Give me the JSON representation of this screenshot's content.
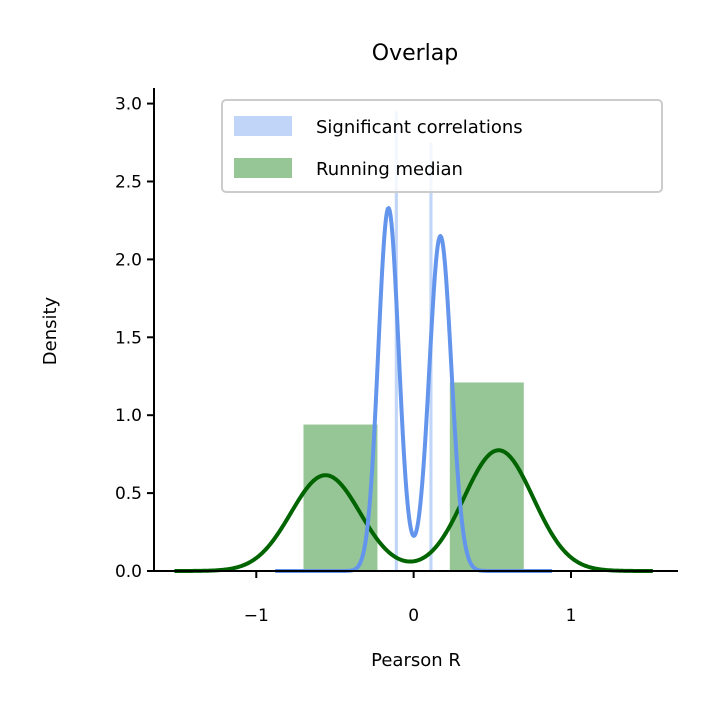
{
  "chart_data": {
    "type": "bar",
    "title": "Overlap",
    "xlabel": "Pearson R",
    "ylabel": "Density",
    "xlim": [
      -1.65,
      1.68
    ],
    "ylim": [
      0,
      3.1
    ],
    "x_ticks": [
      -1,
      0,
      1
    ],
    "x_tick_labels": [
      "−1",
      "0",
      "1"
    ],
    "y_ticks": [
      0.0,
      0.5,
      1.0,
      1.5,
      2.0,
      2.5,
      3.0
    ],
    "y_tick_labels": [
      "0.0",
      "0.5",
      "1.0",
      "1.5",
      "2.0",
      "2.5",
      "3.0"
    ],
    "grid": false,
    "legend_position": "top-right",
    "series": [
      {
        "name": "Significant correlations",
        "kind": "histogram",
        "color": "#6495ed",
        "opacity": 0.4,
        "bins": [
          {
            "x0": -0.23,
            "x1": -0.12,
            "density": 0.0
          },
          {
            "x0": -0.12,
            "x1": -0.1,
            "density": 2.95
          },
          {
            "x0": -0.1,
            "x1": 0.1,
            "density": 0.0
          },
          {
            "x0": 0.1,
            "x1": 0.12,
            "density": 2.75
          },
          {
            "x0": 0.12,
            "x1": 0.23,
            "density": 0.0
          }
        ],
        "kde": {
          "color": "#6495ed",
          "components": [
            {
              "mean": -0.16,
              "sd": 0.065,
              "amp": 2.33
            },
            {
              "mean": 0.17,
              "sd": 0.07,
              "amp": 2.15
            }
          ],
          "range": [
            -0.88,
            0.88
          ]
        }
      },
      {
        "name": "Running median",
        "kind": "histogram",
        "color": "#2e8b2e",
        "opacity": 0.5,
        "bins": [
          {
            "x0": -0.7,
            "x1": -0.23,
            "density": 0.94
          },
          {
            "x0": -0.23,
            "x1": 0.23,
            "density": 0.0
          },
          {
            "x0": 0.23,
            "x1": 0.7,
            "density": 1.21
          }
        ],
        "kde": {
          "color": "#006400",
          "components": [
            {
              "mean": -0.56,
              "sd": 0.22,
              "amp": 0.615
            },
            {
              "mean": 0.54,
              "sd": 0.22,
              "amp": 0.775
            }
          ],
          "range": [
            -1.52,
            1.52
          ]
        }
      }
    ]
  }
}
